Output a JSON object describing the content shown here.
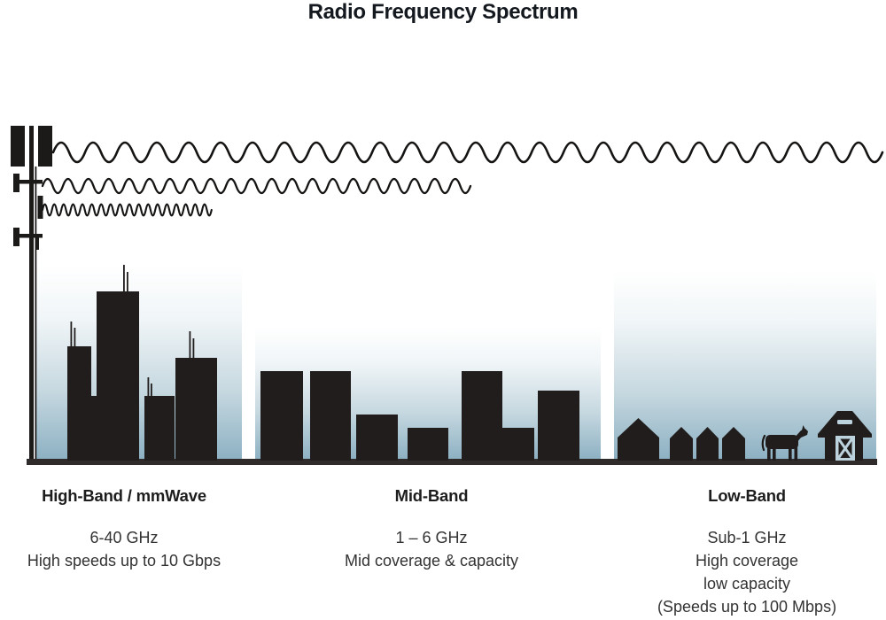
{
  "title": "Radio Frequency Spectrum",
  "bands": [
    {
      "heading": "High-Band / mmWave",
      "lines": [
        "6-40 GHz",
        "High speeds up to 10 Gbps"
      ]
    },
    {
      "heading": "Mid-Band",
      "lines": [
        "1 – 6 GHz",
        "Mid coverage & capacity"
      ]
    },
    {
      "heading": "Low-Band",
      "lines": [
        "Sub-1 GHz",
        "High coverage",
        "low capacity",
        "(Speeds up to 100 Mbps)"
      ]
    }
  ],
  "icons": {
    "transmitter": "cell-tower-icon",
    "waves": [
      "long-wavelength-wave-icon",
      "medium-wavelength-wave-icon",
      "short-wavelength-wave-icon"
    ],
    "high_band_scene": "city-skyline-icon",
    "mid_band_scene": "town-buildings-icon",
    "low_band_scene": [
      "house-icon",
      "cow-icon",
      "barn-icon"
    ]
  },
  "colors": {
    "ink": "#201d1c",
    "ground": "#2e2b2a",
    "sky_top": "#ffffff",
    "sky_bottom": "#8db1c3",
    "barn_detail": "#bcd3de",
    "title_text": "#14181f",
    "body_text": "#333333"
  }
}
